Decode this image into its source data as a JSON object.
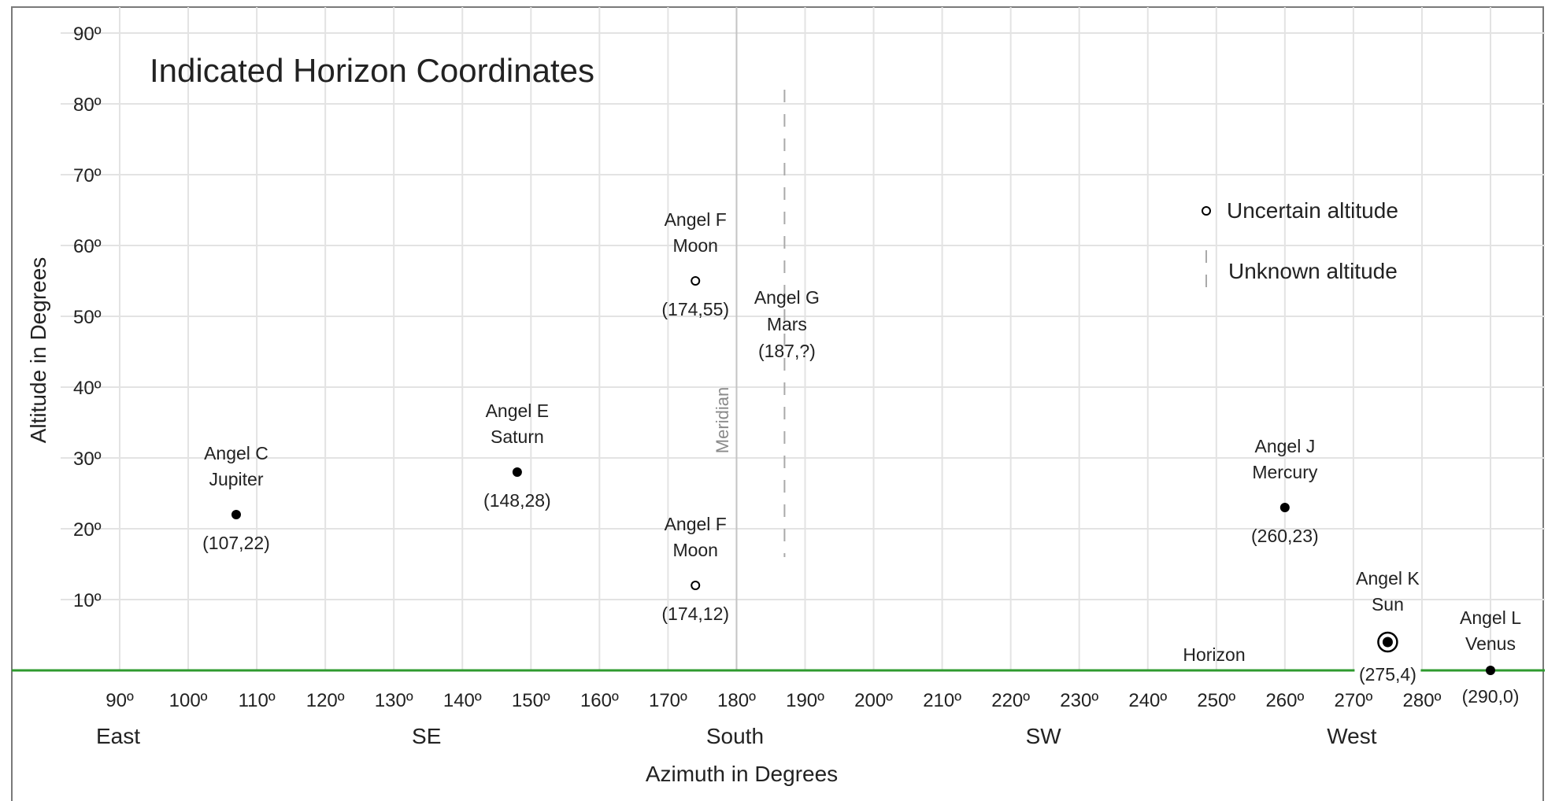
{
  "chart_data": {
    "type": "scatter",
    "title": "Indicated Horizon Coordinates",
    "xlabel": "Azimuth in Degrees",
    "ylabel": "Altitude in Degrees",
    "xlim": [
      90,
      290
    ],
    "ylim": [
      0,
      90
    ],
    "grid": true,
    "x_ticks": [
      90,
      100,
      110,
      120,
      130,
      140,
      150,
      160,
      170,
      180,
      190,
      200,
      210,
      220,
      230,
      240,
      250,
      260,
      270,
      280
    ],
    "x_tick_labels": [
      "90º",
      "100º",
      "110º",
      "120º",
      "130º",
      "140º",
      "150º",
      "160º",
      "170º",
      "180º",
      "190º",
      "200º",
      "210º",
      "220º",
      "230º",
      "240º",
      "250º",
      "260º",
      "270º",
      "280º"
    ],
    "y_ticks": [
      10,
      20,
      30,
      40,
      50,
      60,
      70,
      80,
      90
    ],
    "y_tick_labels": [
      "10º",
      "20º",
      "30º",
      "40º",
      "50º",
      "60º",
      "70º",
      "80º",
      "90º"
    ],
    "compass_labels": [
      {
        "label": "East",
        "az": 90
      },
      {
        "label": "SE",
        "az": 135
      },
      {
        "label": "South",
        "az": 180
      },
      {
        "label": "SW",
        "az": 225
      },
      {
        "label": "West",
        "az": 270
      }
    ],
    "points": [
      {
        "angel": "Angel C",
        "body": "Jupiter",
        "az": 107,
        "alt": 22,
        "coord_label": "(107,22)",
        "marker": "filled"
      },
      {
        "angel": "Angel E",
        "body": "Saturn",
        "az": 148,
        "alt": 28,
        "coord_label": "(148,28)",
        "marker": "filled"
      },
      {
        "angel": "Angel F",
        "body": "Moon",
        "az": 174,
        "alt": 55,
        "coord_label": "(174,55)",
        "marker": "open"
      },
      {
        "angel": "Angel F",
        "body": "Moon",
        "az": 174,
        "alt": 12,
        "coord_label": "(174,12)",
        "marker": "open"
      },
      {
        "angel": "Angel G",
        "body": "Mars",
        "az": 187,
        "alt": null,
        "coord_label": "(187,?)",
        "marker": "dashed-line",
        "alt_range": [
          16,
          82
        ]
      },
      {
        "angel": "Angel J",
        "body": "Mercury",
        "az": 260,
        "alt": 23,
        "coord_label": "(260,23)",
        "marker": "filled"
      },
      {
        "angel": "Angel K",
        "body": "Sun",
        "az": 275,
        "alt": 4,
        "coord_label": "(275,4)",
        "marker": "sun"
      },
      {
        "angel": "Angel L",
        "body": "Venus",
        "az": 290,
        "alt": 0,
        "coord_label": "(290,0)",
        "marker": "filled"
      }
    ],
    "reference_lines": [
      {
        "label": "Meridian",
        "orientation": "vertical",
        "az": 180,
        "color": "#c8c8c8"
      },
      {
        "label": "Horizon",
        "orientation": "horizontal",
        "alt": 0,
        "color": "#2e9a2e"
      }
    ],
    "legend": [
      {
        "marker": "open-circle",
        "label": "Uncertain altitude"
      },
      {
        "marker": "dashed-line",
        "label": "Unknown altitude"
      }
    ],
    "legend_position": "upper right"
  },
  "colors": {
    "grid": "#e3e3e3",
    "meridian": "#c4c4c4",
    "horizon": "#2e9a2e",
    "dashed": "#aaaaaa",
    "text": "#222222",
    "meridian_text": "#8a8a8a",
    "frame": "#7a7a7a"
  }
}
